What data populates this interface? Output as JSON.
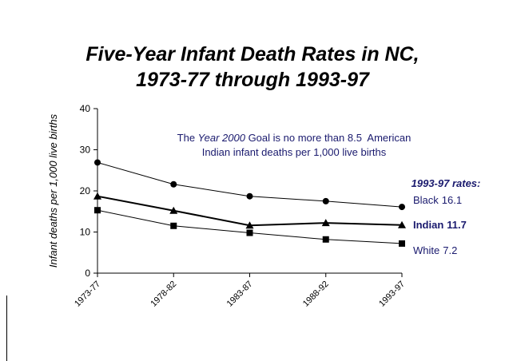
{
  "chart_data": {
    "type": "line",
    "title": [
      "Five-Year Infant Death Rates in NC,",
      "1973-77 through 1993-97"
    ],
    "y_label": "Infant deaths per 1,000 live births",
    "categories": [
      "1973-77",
      "1978-82",
      "1983-87",
      "1988-92",
      "1993-97"
    ],
    "series": [
      {
        "name": "Black",
        "color": "#000000",
        "marker": "circle",
        "values": [
          26.9,
          21.6,
          18.7,
          17.5,
          16.1
        ]
      },
      {
        "name": "Indian",
        "color": "#000000",
        "marker": "triangle",
        "values": [
          18.7,
          15.2,
          11.6,
          12.2,
          11.7
        ]
      },
      {
        "name": "White",
        "color": "#000000",
        "marker": "square",
        "values": [
          15.3,
          11.5,
          9.8,
          8.2,
          7.2
        ]
      }
    ],
    "ylim": [
      0,
      40
    ],
    "yticks": [
      0,
      10,
      20,
      30,
      40
    ],
    "annotation": [
      [
        "The ",
        "Year 2000",
        " Goal is no more than 8.5  American"
      ],
      [
        "Indian infant deaths per 1,000 live births"
      ]
    ],
    "end_labels_title": "1993-97 rates:"
  }
}
